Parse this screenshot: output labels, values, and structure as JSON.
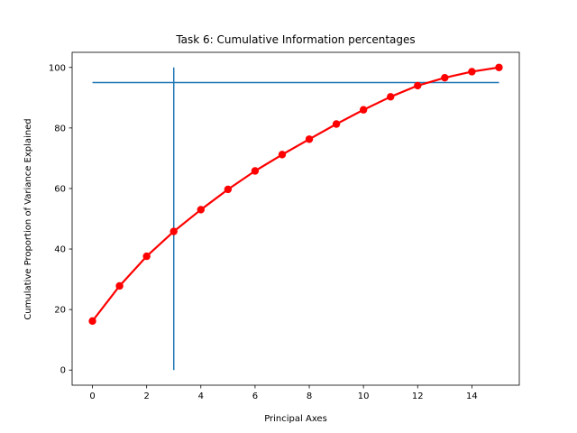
{
  "chart_data": {
    "type": "line",
    "title": "Task 6: Cumulative Information percentages",
    "xlabel": "Principal Axes",
    "ylabel": "Cumulative Proportion of Variance Explained",
    "xlim": [
      -0.75,
      15.75
    ],
    "ylim": [
      -5,
      105
    ],
    "xticks": [
      0,
      2,
      4,
      6,
      8,
      10,
      12,
      14
    ],
    "yticks": [
      0,
      20,
      40,
      60,
      80,
      100
    ],
    "grid": false,
    "series": [
      {
        "color": "#ff0000",
        "marker": "circle",
        "x": [
          0,
          1,
          2,
          3,
          4,
          5,
          6,
          7,
          8,
          9,
          10,
          11,
          12,
          13,
          14,
          15
        ],
        "values": [
          16.2,
          27.8,
          37.6,
          45.8,
          53.0,
          59.7,
          65.8,
          71.2,
          76.3,
          81.3,
          86.0,
          90.3,
          94.0,
          96.6,
          98.6,
          100.0
        ]
      }
    ],
    "reference_lines": [
      {
        "orientation": "horizontal",
        "y": 95,
        "x_from": 0,
        "x_to": 15,
        "color": "#1f77b4"
      },
      {
        "orientation": "vertical",
        "x": 3,
        "y_from": 0,
        "y_to": 100,
        "color": "#1f77b4"
      }
    ]
  }
}
